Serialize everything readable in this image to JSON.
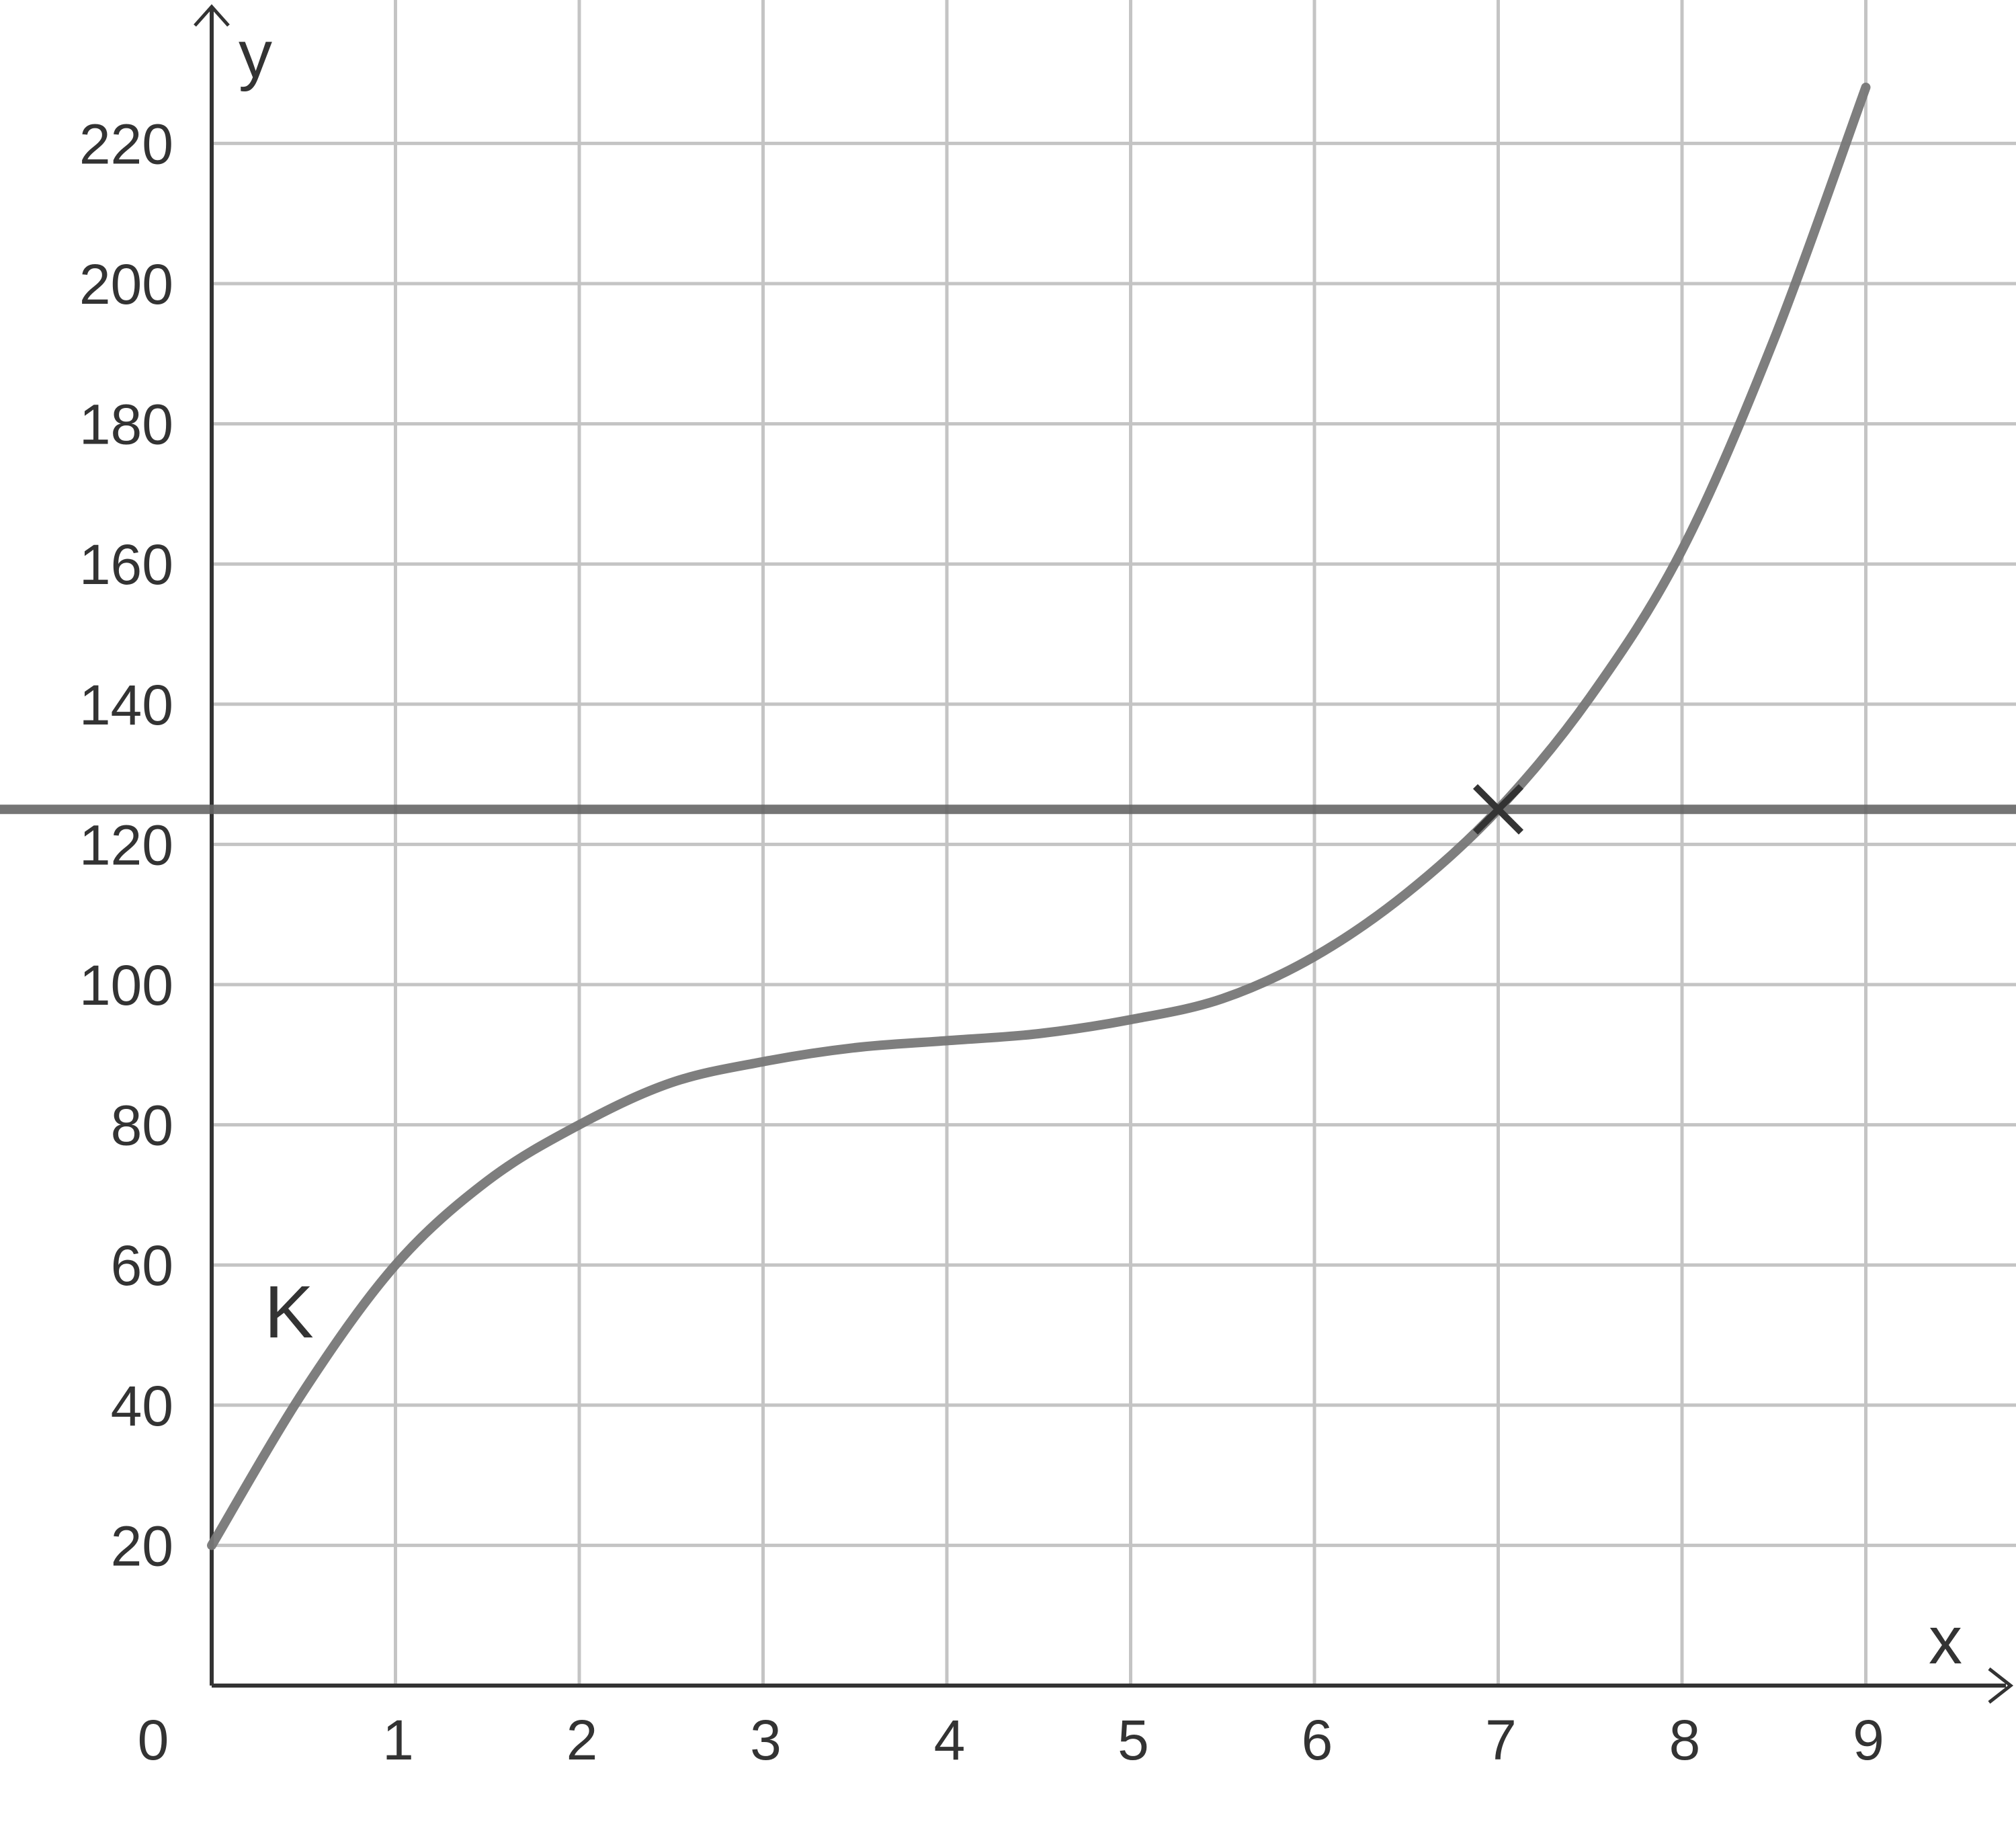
{
  "chart_data": {
    "type": "line",
    "xlabel": "x",
    "ylabel": "y",
    "xlim": [
      0,
      9.8
    ],
    "ylim": [
      0,
      240
    ],
    "x_ticks": [
      "1",
      "2",
      "3",
      "4",
      "5",
      "6",
      "7",
      "8",
      "9"
    ],
    "y_ticks": [
      "20",
      "40",
      "60",
      "80",
      "100",
      "120",
      "140",
      "160",
      "180",
      "200",
      "220"
    ],
    "origin_label": "0",
    "grid": true,
    "series": [
      {
        "name": "K",
        "x": [
          0,
          0.5,
          1,
          1.5,
          2,
          2.5,
          3,
          3.5,
          4,
          4.5,
          5,
          5.5,
          6,
          6.5,
          7,
          7.5,
          8,
          8.5,
          9
        ],
        "y": [
          20,
          42,
          60,
          72,
          80,
          86,
          89,
          91,
          92,
          93,
          95,
          98,
          104,
          113,
          125,
          141,
          162,
          192,
          228
        ]
      }
    ],
    "hlines": [
      {
        "y": 125
      }
    ],
    "markers": [
      {
        "x": 7,
        "y": 125,
        "symbol": "x"
      }
    ],
    "colors": {
      "curve": "#777777",
      "hline": "#666666",
      "grid": "#c4c4c4",
      "axis": "#333333",
      "text": "#333333"
    }
  }
}
